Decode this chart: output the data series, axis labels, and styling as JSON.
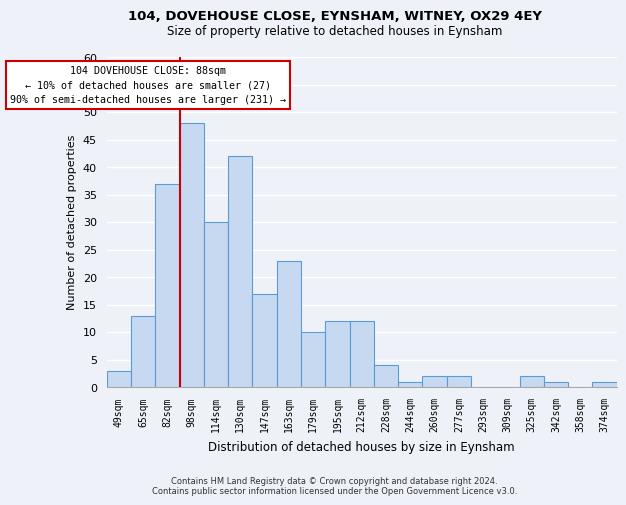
{
  "title1": "104, DOVEHOUSE CLOSE, EYNSHAM, WITNEY, OX29 4EY",
  "title2": "Size of property relative to detached houses in Eynsham",
  "xlabel": "Distribution of detached houses by size in Eynsham",
  "ylabel": "Number of detached properties",
  "footer1": "Contains HM Land Registry data © Crown copyright and database right 2024.",
  "footer2": "Contains public sector information licensed under the Open Government Licence v3.0.",
  "bin_labels": [
    "49sqm",
    "65sqm",
    "82sqm",
    "98sqm",
    "114sqm",
    "130sqm",
    "147sqm",
    "163sqm",
    "179sqm",
    "195sqm",
    "212sqm",
    "228sqm",
    "244sqm",
    "260sqm",
    "277sqm",
    "293sqm",
    "309sqm",
    "325sqm",
    "342sqm",
    "358sqm",
    "374sqm"
  ],
  "bar_heights": [
    3,
    13,
    37,
    48,
    30,
    42,
    17,
    23,
    10,
    12,
    12,
    4,
    1,
    2,
    2,
    0,
    0,
    2,
    1,
    0,
    1
  ],
  "bar_color": "#c6d9f0",
  "bar_edge_color": "#5b9bd5",
  "ylim": [
    0,
    60
  ],
  "yticks": [
    0,
    5,
    10,
    15,
    20,
    25,
    30,
    35,
    40,
    45,
    50,
    55,
    60
  ],
  "property_line_color": "#cc0000",
  "annotation_text": "104 DOVEHOUSE CLOSE: 88sqm\n← 10% of detached houses are smaller (27)\n90% of semi-detached houses are larger (231) →",
  "annotation_box_color": "#ffffff",
  "annotation_box_edge_color": "#cc0000",
  "background_color": "#eef2f8"
}
